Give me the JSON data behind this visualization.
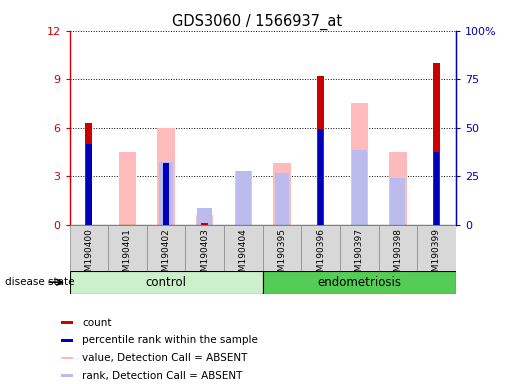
{
  "title": "GDS3060 / 1566937_at",
  "samples": [
    "GSM190400",
    "GSM190401",
    "GSM190402",
    "GSM190403",
    "GSM190404",
    "GSM190395",
    "GSM190396",
    "GSM190397",
    "GSM190398",
    "GSM190399"
  ],
  "count_values": [
    6.3,
    0,
    0,
    0.1,
    0,
    0,
    9.2,
    0,
    0,
    10.0
  ],
  "percentile_rank_values": [
    5.0,
    0,
    3.8,
    0,
    0,
    0,
    5.9,
    0,
    0,
    4.5
  ],
  "value_absent_values": [
    0,
    4.5,
    6.0,
    0.6,
    3.3,
    3.8,
    0,
    7.5,
    4.5,
    0
  ],
  "rank_absent_values": [
    0,
    0,
    3.9,
    1.0,
    3.3,
    3.2,
    0,
    4.6,
    2.9,
    0
  ],
  "ylim_left": [
    0,
    12
  ],
  "ylim_right": [
    0,
    100
  ],
  "yticks_left": [
    0,
    3,
    6,
    9,
    12
  ],
  "yticks_right": [
    0,
    25,
    50,
    75,
    100
  ],
  "yticklabels_left": [
    "0",
    "3",
    "6",
    "9",
    "12"
  ],
  "yticklabels_right": [
    "0",
    "25",
    "50",
    "75",
    "100%"
  ],
  "count_color": "#cc0000",
  "percentile_color": "#0000bb",
  "value_absent_color": "#ffbbbb",
  "rank_absent_color": "#bbbbee",
  "bg_color": "#d8d8d8",
  "plot_bg": "#ffffff",
  "control_group_color": "#ccf0cc",
  "endo_group_color": "#55cc55",
  "disease_state_label": "disease state"
}
